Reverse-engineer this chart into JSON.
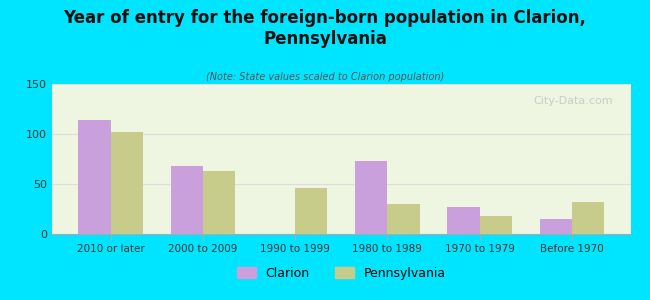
{
  "title": "Year of entry for the foreign-born population in Clarion,\nPennsylvania",
  "subtitle": "(Note: State values scaled to Clarion population)",
  "categories": [
    "2010 or later",
    "2000 to 2009",
    "1990 to 1999",
    "1980 to 1989",
    "1970 to 1979",
    "Before 1970"
  ],
  "clarion_values": [
    114,
    68,
    0,
    73,
    27,
    15
  ],
  "pennsylvania_values": [
    102,
    63,
    46,
    30,
    18,
    32
  ],
  "clarion_color": "#c9a0dc",
  "pennsylvania_color": "#c8cc8a",
  "bg_color": "#00e5ff",
  "plot_bg_top": "#f0fff0",
  "plot_bg_bottom": "#e8f5e8",
  "ylim": [
    0,
    150
  ],
  "yticks": [
    0,
    50,
    100,
    150
  ],
  "bar_width": 0.35,
  "watermark": "City-Data.com",
  "legend_labels": [
    "Clarion",
    "Pennsylvania"
  ]
}
